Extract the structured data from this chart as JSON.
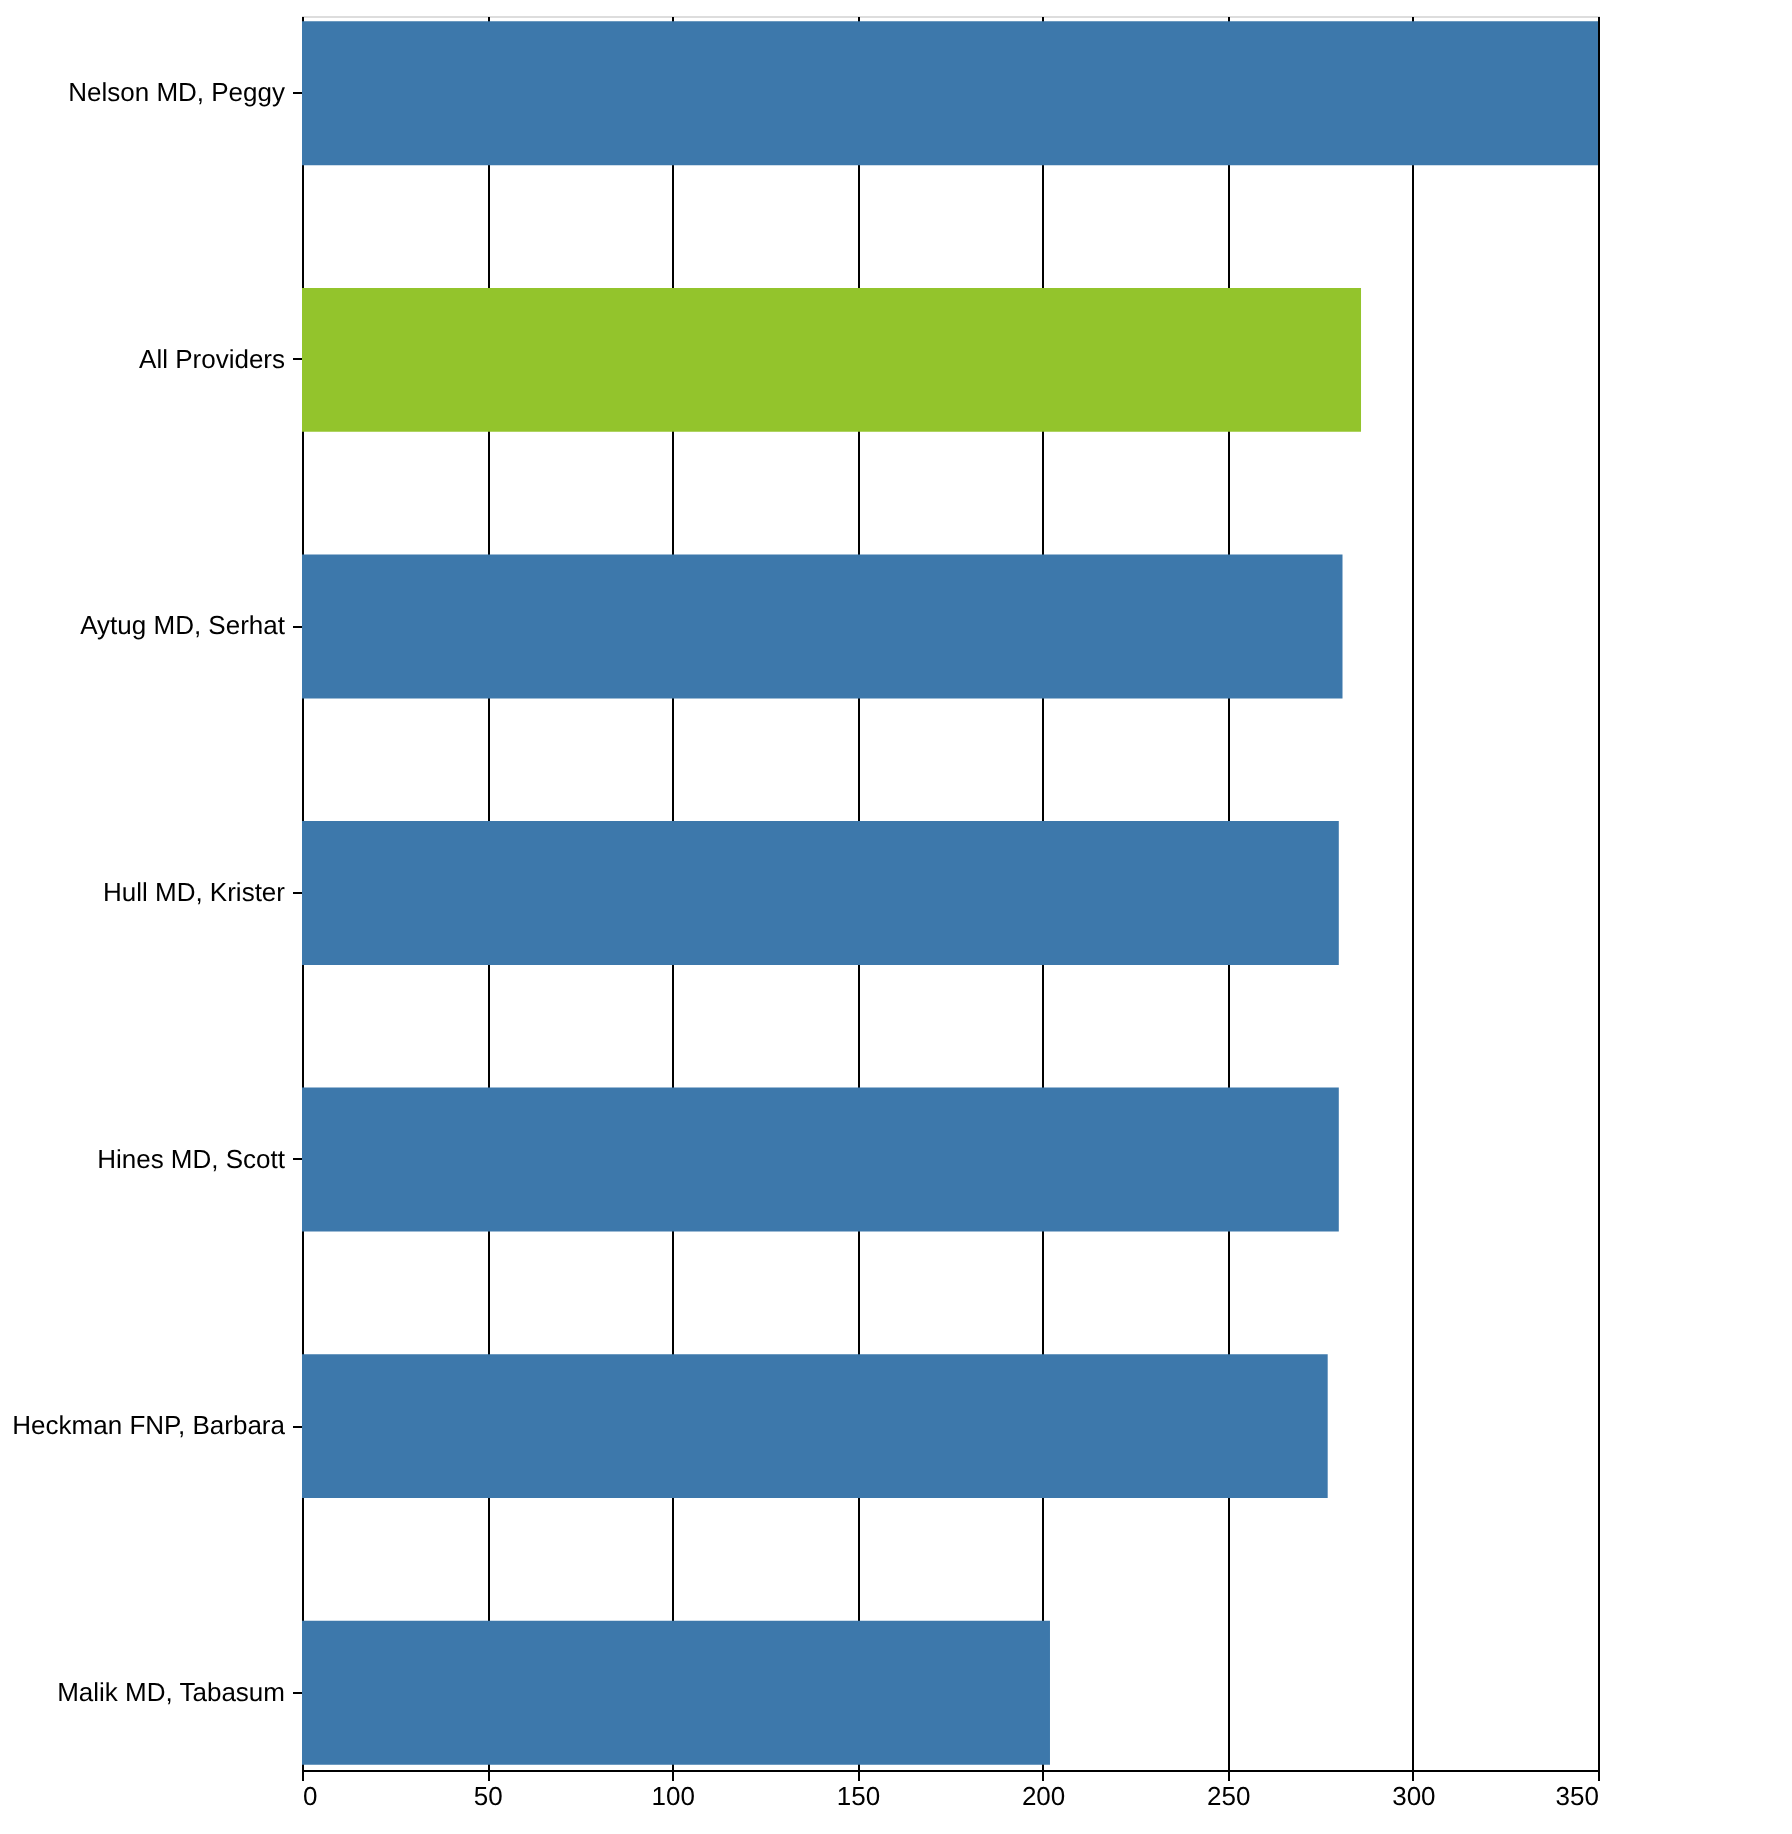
{
  "chart_data": {
    "type": "bar",
    "orientation": "horizontal",
    "categories": [
      "Nelson MD, Peggy",
      "All Providers",
      "Aytug MD, Serhat",
      "Hull MD, Krister",
      "Hines MD, Scott",
      "Heckman FNP, Barbara",
      "Malik MD, Tabasum"
    ],
    "values": [
      350,
      286,
      281,
      280,
      280,
      277,
      202
    ],
    "colors": [
      "#3d78ab",
      "#93c42c",
      "#3d78ab",
      "#3d78ab",
      "#3d78ab",
      "#3d78ab",
      "#3d78ab"
    ],
    "xlim": [
      0,
      350
    ],
    "xticks": [
      0,
      50,
      100,
      150,
      200,
      250,
      300,
      350
    ],
    "grid": "x"
  }
}
